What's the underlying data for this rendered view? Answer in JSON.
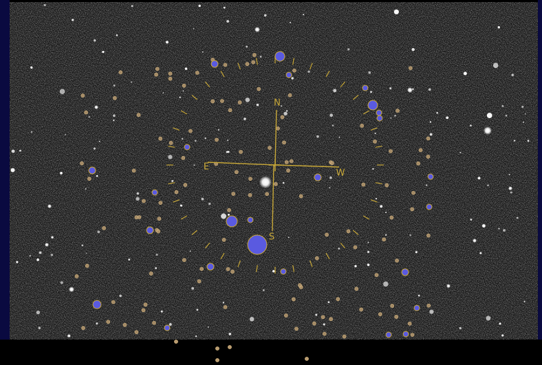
{
  "compass": {
    "north": "N",
    "east": "E",
    "west": "W",
    "south": "S"
  }
}
